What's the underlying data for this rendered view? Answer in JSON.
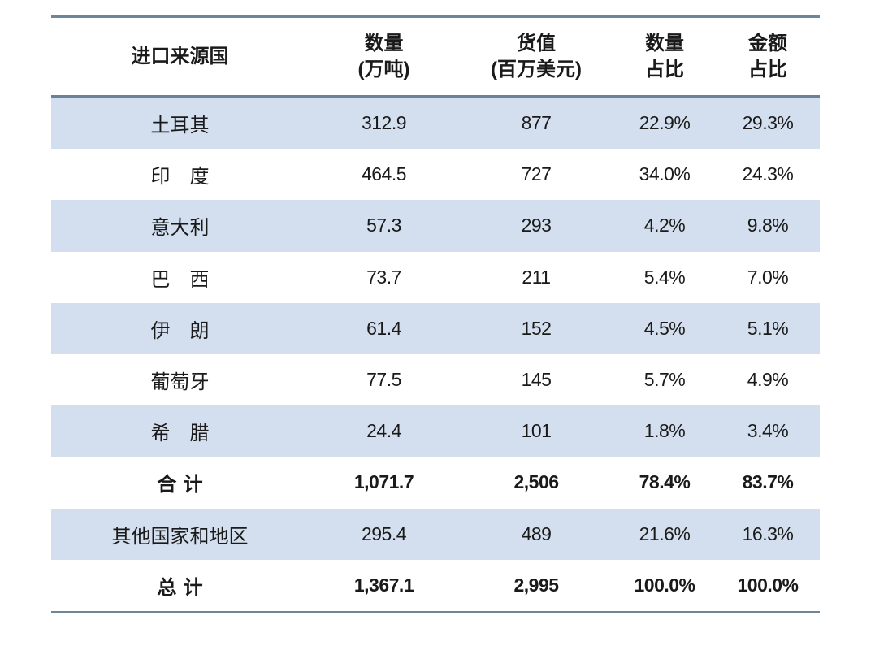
{
  "table": {
    "headers": [
      {
        "line1": "进口来源国",
        "line2": ""
      },
      {
        "line1": "数量",
        "line2": "(万吨)"
      },
      {
        "line1": "货值",
        "line2": "(百万美元)"
      },
      {
        "line1": "数量",
        "line2": "占比"
      },
      {
        "line1": "金额",
        "line2": "占比"
      }
    ],
    "rows": [
      {
        "country": "土耳其",
        "quantity": "312.9",
        "value": "877",
        "qty_share": "22.9%",
        "val_share": "29.3%"
      },
      {
        "country": "印　度",
        "quantity": "464.5",
        "value": "727",
        "qty_share": "34.0%",
        "val_share": "24.3%"
      },
      {
        "country": "意大利",
        "quantity": "57.3",
        "value": "293",
        "qty_share": "4.2%",
        "val_share": "9.8%"
      },
      {
        "country": "巴　西",
        "quantity": "73.7",
        "value": "211",
        "qty_share": "5.4%",
        "val_share": "7.0%"
      },
      {
        "country": "伊　朗",
        "quantity": "61.4",
        "value": "152",
        "qty_share": "4.5%",
        "val_share": "5.1%"
      },
      {
        "country": "葡萄牙",
        "quantity": "77.5",
        "value": "145",
        "qty_share": "5.7%",
        "val_share": "4.9%"
      },
      {
        "country": "希　腊",
        "quantity": "24.4",
        "value": "101",
        "qty_share": "1.8%",
        "val_share": "3.4%"
      },
      {
        "country": "合 计",
        "quantity": "1,071.7",
        "value": "2,506",
        "qty_share": "78.4%",
        "val_share": "83.7%"
      },
      {
        "country": "其他国家和地区",
        "quantity": "295.4",
        "value": "489",
        "qty_share": "21.6%",
        "val_share": "16.3%"
      },
      {
        "country": "总 计",
        "quantity": "1,367.1",
        "value": "2,995",
        "qty_share": "100.0%",
        "val_share": "100.0%"
      }
    ]
  },
  "colors": {
    "shade": "#d3dfee",
    "rule": "#6f8598"
  },
  "chart_data": {
    "type": "table",
    "title": "",
    "columns": [
      "进口来源国",
      "数量(万吨)",
      "货值(百万美元)",
      "数量占比",
      "金额占比"
    ],
    "rows": [
      [
        "土耳其",
        312.9,
        877,
        "22.9%",
        "29.3%"
      ],
      [
        "印度",
        464.5,
        727,
        "34.0%",
        "24.3%"
      ],
      [
        "意大利",
        57.3,
        293,
        "4.2%",
        "9.8%"
      ],
      [
        "巴西",
        73.7,
        211,
        "5.4%",
        "7.0%"
      ],
      [
        "伊朗",
        61.4,
        152,
        "4.5%",
        "5.1%"
      ],
      [
        "葡萄牙",
        77.5,
        145,
        "5.7%",
        "4.9%"
      ],
      [
        "希腊",
        24.4,
        101,
        "1.8%",
        "3.4%"
      ],
      [
        "合计",
        1071.7,
        2506,
        "78.4%",
        "83.7%"
      ],
      [
        "其他国家和地区",
        295.4,
        489,
        "21.6%",
        "16.3%"
      ],
      [
        "总计",
        1367.1,
        2995,
        "100.0%",
        "100.0%"
      ]
    ]
  }
}
